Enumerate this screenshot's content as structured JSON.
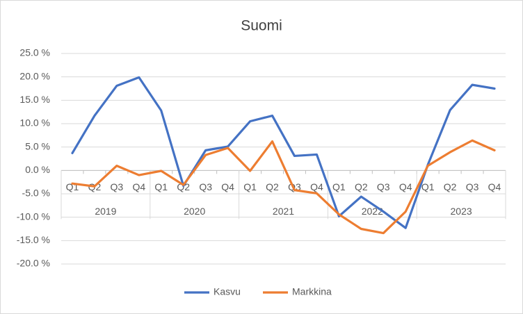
{
  "chart_data": {
    "type": "line",
    "title": "Suomi",
    "categories": [
      "Q1",
      "Q2",
      "Q3",
      "Q4",
      "Q1",
      "Q2",
      "Q3",
      "Q4",
      "Q1",
      "Q2",
      "Q3",
      "Q4",
      "Q1",
      "Q2",
      "Q3",
      "Q4",
      "Q1",
      "Q2",
      "Q3",
      "Q4"
    ],
    "groups": [
      "2019",
      "2020",
      "2021",
      "2022",
      "2023"
    ],
    "series": [
      {
        "name": "Kasvu",
        "color": "#4472c4",
        "values": [
          3.7,
          11.7,
          18.1,
          19.9,
          12.8,
          -3.3,
          4.3,
          5.1,
          10.5,
          11.7,
          3.1,
          3.4,
          -9.8,
          -5.6,
          -8.8,
          -12.3,
          1.2,
          12.9,
          18.3,
          17.5
        ]
      },
      {
        "name": "Markkina",
        "color": "#ed7d31",
        "values": [
          -2.8,
          -3.4,
          1.0,
          -1.0,
          -0.1,
          -3.1,
          3.3,
          4.8,
          -0.1,
          6.2,
          -4.2,
          -4.9,
          -9.4,
          -12.5,
          -13.4,
          -8.8,
          1.0,
          3.9,
          6.4,
          4.3
        ]
      }
    ],
    "ylim": [
      -20,
      25
    ],
    "yticks": [
      {
        "value": -20,
        "label": "-20.0 %"
      },
      {
        "value": -15,
        "label": "-15.0 %"
      },
      {
        "value": -10,
        "label": "-10.0 %"
      },
      {
        "value": -5,
        "label": "-5.0 %"
      },
      {
        "value": 0,
        "label": "0.0 %"
      },
      {
        "value": 5,
        "label": "5.0 %"
      },
      {
        "value": 10,
        "label": "10.0 %"
      },
      {
        "value": 15,
        "label": "15.0 %"
      },
      {
        "value": 20,
        "label": "20.0 %"
      },
      {
        "value": 25,
        "label": "25.0 %"
      }
    ],
    "grid": true,
    "legend": "bottom"
  }
}
